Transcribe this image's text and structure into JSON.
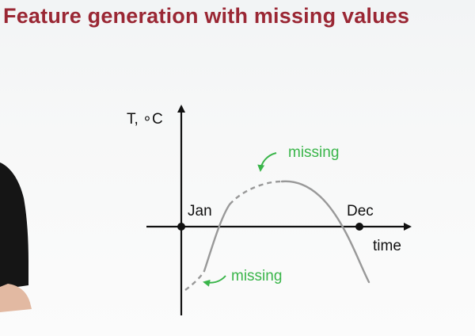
{
  "slide": {
    "title": "Feature generation with missing values",
    "title_color": "#9a2734"
  },
  "diagram": {
    "y_axis_label": "T, ∘C",
    "x_axis_label": "time",
    "start_marker_label": "Jan",
    "end_marker_label": "Dec",
    "missing_label_top": "missing",
    "missing_label_bottom": "missing",
    "accent_color": "#3ab54a",
    "curve_color": "#999999",
    "axis_color": "#111111"
  }
}
